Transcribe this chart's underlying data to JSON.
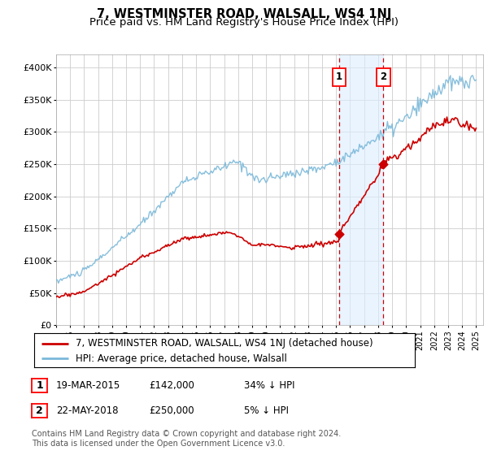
{
  "title": "7, WESTMINSTER ROAD, WALSALL, WS4 1NJ",
  "subtitle": "Price paid vs. HM Land Registry's House Price Index (HPI)",
  "ylim": [
    0,
    420000
  ],
  "yticks": [
    0,
    50000,
    100000,
    150000,
    200000,
    250000,
    300000,
    350000,
    400000
  ],
  "ytick_labels": [
    "£0",
    "£50K",
    "£100K",
    "£150K",
    "£200K",
    "£250K",
    "£300K",
    "£350K",
    "£400K"
  ],
  "background_color": "#ffffff",
  "plot_bg_color": "#ffffff",
  "grid_color": "#cccccc",
  "hpi_color": "#7ab8d9",
  "price_color": "#cc0000",
  "shade_color": "#ddeeff",
  "transaction1_date": 2015.22,
  "transaction1_price": 142000,
  "transaction2_date": 2018.38,
  "transaction2_price": 250000,
  "legend_label1": "7, WESTMINSTER ROAD, WALSALL, WS4 1NJ (detached house)",
  "legend_label2": "HPI: Average price, detached house, Walsall",
  "annotation1_date": "19-MAR-2015",
  "annotation1_price": "£142,000",
  "annotation1_note": "34% ↓ HPI",
  "annotation2_date": "22-MAY-2018",
  "annotation2_price": "£250,000",
  "annotation2_note": "5% ↓ HPI",
  "footer": "Contains HM Land Registry data © Crown copyright and database right 2024.\nThis data is licensed under the Open Government Licence v3.0.",
  "title_fontsize": 10.5,
  "subtitle_fontsize": 9.5,
  "tick_fontsize": 8,
  "legend_fontsize": 8.5,
  "annotation_fontsize": 8.5,
  "footer_fontsize": 7.0
}
